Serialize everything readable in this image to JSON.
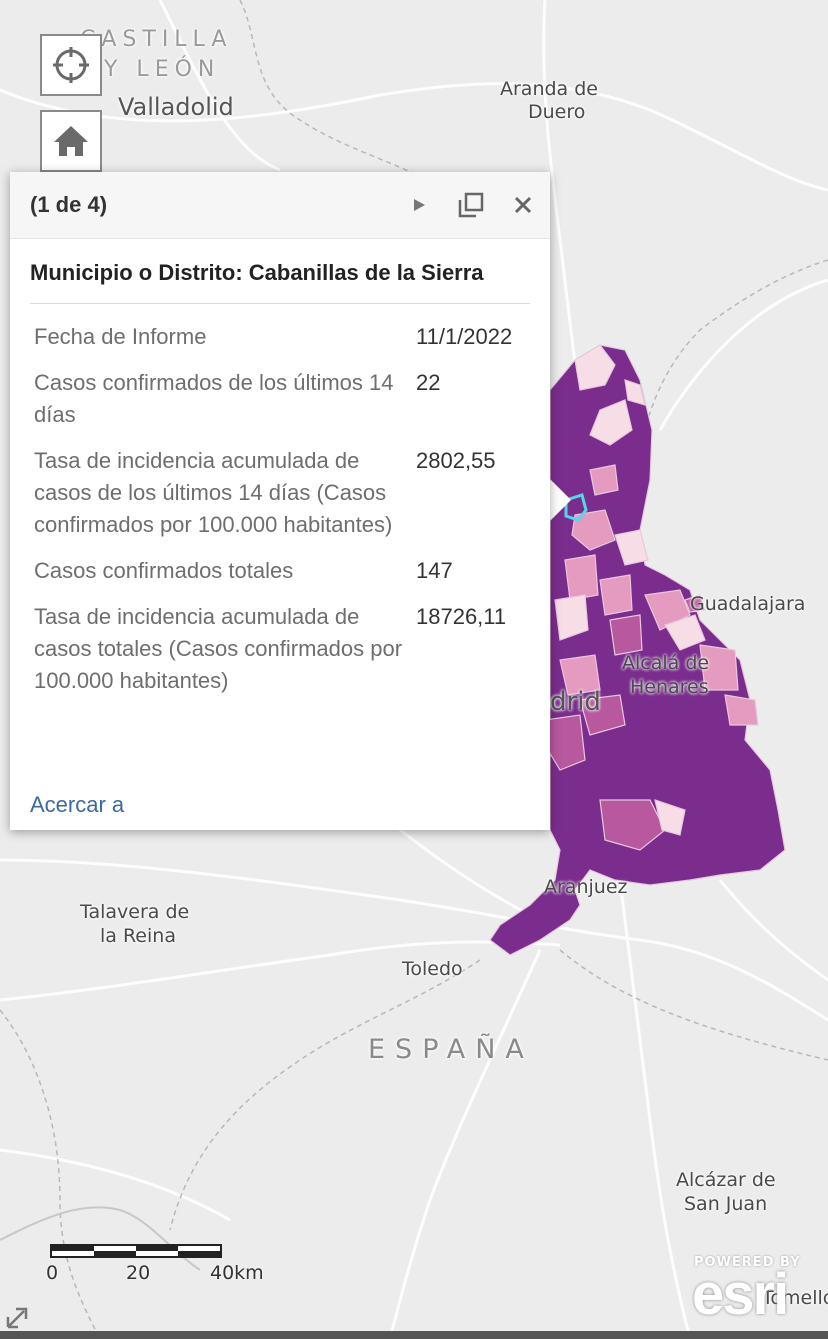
{
  "map": {
    "labels": {
      "region_line1": "CASTILLA",
      "region_line2": "Y LEÓN",
      "valladolid": "Valladolid",
      "aranda_1": "Aranda de",
      "aranda_2": "Duero",
      "guadalajara": "Guadalajara",
      "alcala_1": "Alcalá de",
      "alcala_2": "Henares",
      "madrid": "drid",
      "aranjuez": "Aranjuez",
      "talavera_1": "Talavera de",
      "talavera_2": "la Reina",
      "toledo": "Toledo",
      "espana": "ESPAÑA",
      "alcazar_1": "Alcázar de",
      "alcazar_2": "San Juan",
      "tomelloso": "Tomello"
    },
    "colors": {
      "dark": "#7b2d8e",
      "medium": "#b8589e",
      "light": "#e59ac0",
      "pale": "#f6dde6",
      "selected_outline": "#55d6e8"
    }
  },
  "controls": {
    "locate_icon": "crosshair-icon",
    "home_icon": "home-icon"
  },
  "popup": {
    "counter": "(1 de 4)",
    "title": "Municipio o Distrito: Cabanillas de la Sierra",
    "fields": [
      {
        "name": "Fecha de Informe",
        "value": "11/1/2022"
      },
      {
        "name": "Casos confirmados de los últimos 14 días",
        "value": "22"
      },
      {
        "name": "Tasa de incidencia acumulada de casos de los últimos 14 días (Casos confirmados por 100.000 habitantes)",
        "value": "2802,55"
      },
      {
        "name": "Casos confirmados totales",
        "value": "147"
      },
      {
        "name": "Tasa de incidencia acumulada de casos totales (Casos confirmados por 100.000 habitantes)",
        "value": "18726,11"
      }
    ],
    "zoom_link": "Acercar a"
  },
  "scale": {
    "ticks": [
      "0",
      "20",
      "40km"
    ]
  },
  "attribution": {
    "powered": "POWERED BY",
    "logo": "esri"
  }
}
